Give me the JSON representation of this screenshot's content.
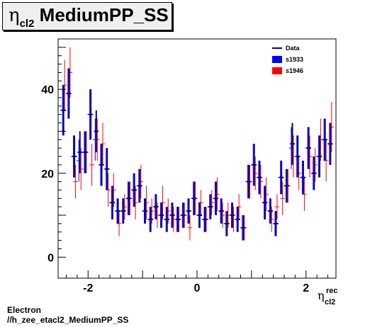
{
  "title": {
    "symbol": "η",
    "subscript": "cl2",
    "text": "MediumPP_SS"
  },
  "footer": {
    "line1": "Electron",
    "line2": "//h_zee_etacl2_MediumPP_SS"
  },
  "chart_data": {
    "type": "scatter",
    "title": "η cl2 MediumPP_SS",
    "xlabel": "η rec cl2",
    "ylabel": "",
    "xlim": [
      -2.55,
      2.55
    ],
    "ylim": [
      -5,
      52
    ],
    "xticks": [
      -2,
      0,
      2
    ],
    "yticks": [
      0,
      20,
      40
    ],
    "xtick_labels": [
      "-2",
      "0",
      "2"
    ],
    "ytick_labels": [
      "0",
      "20",
      "40"
    ],
    "xlabel_parts": {
      "base": "η",
      "sup": "rec",
      "sub": "cl2"
    },
    "legend_position": "top-right",
    "legend": [
      {
        "label": "Data",
        "kind": "line",
        "color": "#000099"
      },
      {
        "label": "s1933",
        "kind": "box",
        "color": "#0000ff"
      },
      {
        "label": "s1946",
        "kind": "box",
        "color": "#ff0000"
      }
    ],
    "series": [
      {
        "name": "s1933",
        "color": "#0000ff",
        "x": [
          -2.45,
          -2.35,
          -2.25,
          -2.15,
          -2.05,
          -1.95,
          -1.85,
          -1.75,
          -1.65,
          -1.55,
          -1.45,
          -1.35,
          -1.25,
          -1.15,
          -1.05,
          -0.95,
          -0.85,
          -0.75,
          -0.65,
          -0.55,
          -0.45,
          -0.35,
          -0.25,
          -0.15,
          -0.05,
          0.05,
          0.15,
          0.25,
          0.35,
          0.45,
          0.55,
          0.65,
          0.75,
          0.85,
          0.95,
          1.05,
          1.15,
          1.25,
          1.35,
          1.45,
          1.55,
          1.65,
          1.75,
          1.85,
          1.95,
          2.05,
          2.15,
          2.25,
          2.35,
          2.45
        ],
        "y": [
          35,
          39,
          24,
          23,
          25,
          34,
          28,
          22,
          21,
          13,
          11,
          11,
          14,
          16,
          17,
          11,
          9,
          12,
          10,
          9,
          10,
          9,
          10,
          11,
          14,
          10,
          9,
          12,
          14,
          11,
          8,
          10,
          9,
          7,
          18,
          22,
          19,
          13,
          11,
          8,
          19,
          17,
          26,
          24,
          19,
          26,
          20,
          24,
          28,
          27
        ],
        "err": [
          6,
          6,
          5,
          5,
          5,
          6,
          5,
          5,
          5,
          4,
          3,
          3,
          4,
          4,
          4,
          3,
          3,
          3,
          3,
          3,
          3,
          3,
          3,
          3,
          4,
          3,
          3,
          3,
          4,
          3,
          3,
          3,
          3,
          3,
          4,
          5,
          4,
          4,
          3,
          3,
          4,
          4,
          5,
          5,
          4,
          5,
          4,
          5,
          5,
          5
        ]
      },
      {
        "name": "s1946",
        "color": "#ff0000",
        "x": [
          -2.45,
          -2.35,
          -2.25,
          -2.15,
          -2.05,
          -1.95,
          -1.85,
          -1.75,
          -1.65,
          -1.55,
          -1.45,
          -1.35,
          -1.25,
          -1.15,
          -1.05,
          -0.95,
          -0.85,
          -0.75,
          -0.65,
          -0.55,
          -0.45,
          -0.35,
          -0.25,
          -0.15,
          -0.05,
          0.05,
          0.15,
          0.25,
          0.35,
          0.45,
          0.55,
          0.65,
          0.75,
          0.85,
          0.95,
          1.05,
          1.15,
          1.25,
          1.35,
          1.45,
          1.55,
          1.65,
          1.75,
          1.85,
          1.95,
          2.05,
          2.15,
          2.25,
          2.35,
          2.45
        ],
        "y": [
          41,
          44,
          18,
          21,
          25,
          22,
          28,
          27,
          16,
          16,
          8,
          12,
          14,
          13,
          18,
          13,
          11,
          10,
          13,
          11,
          9,
          9,
          10,
          7,
          14,
          13,
          9,
          13,
          15,
          10,
          10,
          9,
          12,
          7,
          18,
          20,
          18,
          15,
          9,
          12,
          14,
          17,
          24,
          20,
          15,
          24,
          22,
          28,
          23,
          31
        ],
        "err": [
          6,
          6,
          4,
          5,
          5,
          5,
          5,
          5,
          4,
          4,
          3,
          3,
          4,
          4,
          4,
          4,
          3,
          3,
          4,
          3,
          3,
          3,
          3,
          3,
          4,
          3,
          3,
          3,
          4,
          3,
          3,
          3,
          3,
          3,
          4,
          4,
          4,
          4,
          3,
          3,
          4,
          4,
          5,
          4,
          4,
          5,
          4,
          5,
          5,
          6
        ]
      },
      {
        "name": "Data",
        "color": "#000099",
        "x": [
          -2.45,
          -2.35,
          -2.25,
          -2.15,
          -2.05,
          -1.95,
          -1.85,
          -1.75,
          -1.65,
          -1.55,
          -1.45,
          -1.35,
          -1.25,
          -1.15,
          -1.05,
          -0.95,
          -0.85,
          -0.75,
          -0.65,
          -0.55,
          -0.45,
          -0.35,
          -0.25,
          -0.15,
          -0.05,
          0.05,
          0.15,
          0.25,
          0.35,
          0.45,
          0.55,
          0.65,
          0.75,
          0.85,
          0.95,
          1.05,
          1.15,
          1.25,
          1.35,
          1.45,
          1.55,
          1.65,
          1.75,
          1.85,
          1.95,
          2.05,
          2.15,
          2.25,
          2.35,
          2.45
        ],
        "y": [
          35,
          39,
          24,
          25,
          25,
          34,
          30,
          22,
          21,
          13,
          11,
          11,
          14,
          16,
          17,
          11,
          9,
          12,
          10,
          9,
          10,
          9,
          10,
          11,
          14,
          10,
          9,
          12,
          14,
          11,
          8,
          10,
          9,
          7,
          18,
          22,
          19,
          13,
          11,
          8,
          19,
          17,
          27,
          24,
          19,
          26,
          20,
          24,
          28,
          27
        ],
        "err": [
          6,
          6,
          5,
          5,
          5,
          6,
          5,
          5,
          5,
          4,
          3,
          3,
          4,
          4,
          4,
          3,
          3,
          3,
          3,
          3,
          3,
          3,
          3,
          3,
          4,
          3,
          3,
          3,
          4,
          3,
          3,
          3,
          3,
          3,
          4,
          5,
          4,
          4,
          3,
          3,
          4,
          4,
          5,
          5,
          4,
          5,
          4,
          5,
          5,
          5
        ]
      }
    ]
  }
}
